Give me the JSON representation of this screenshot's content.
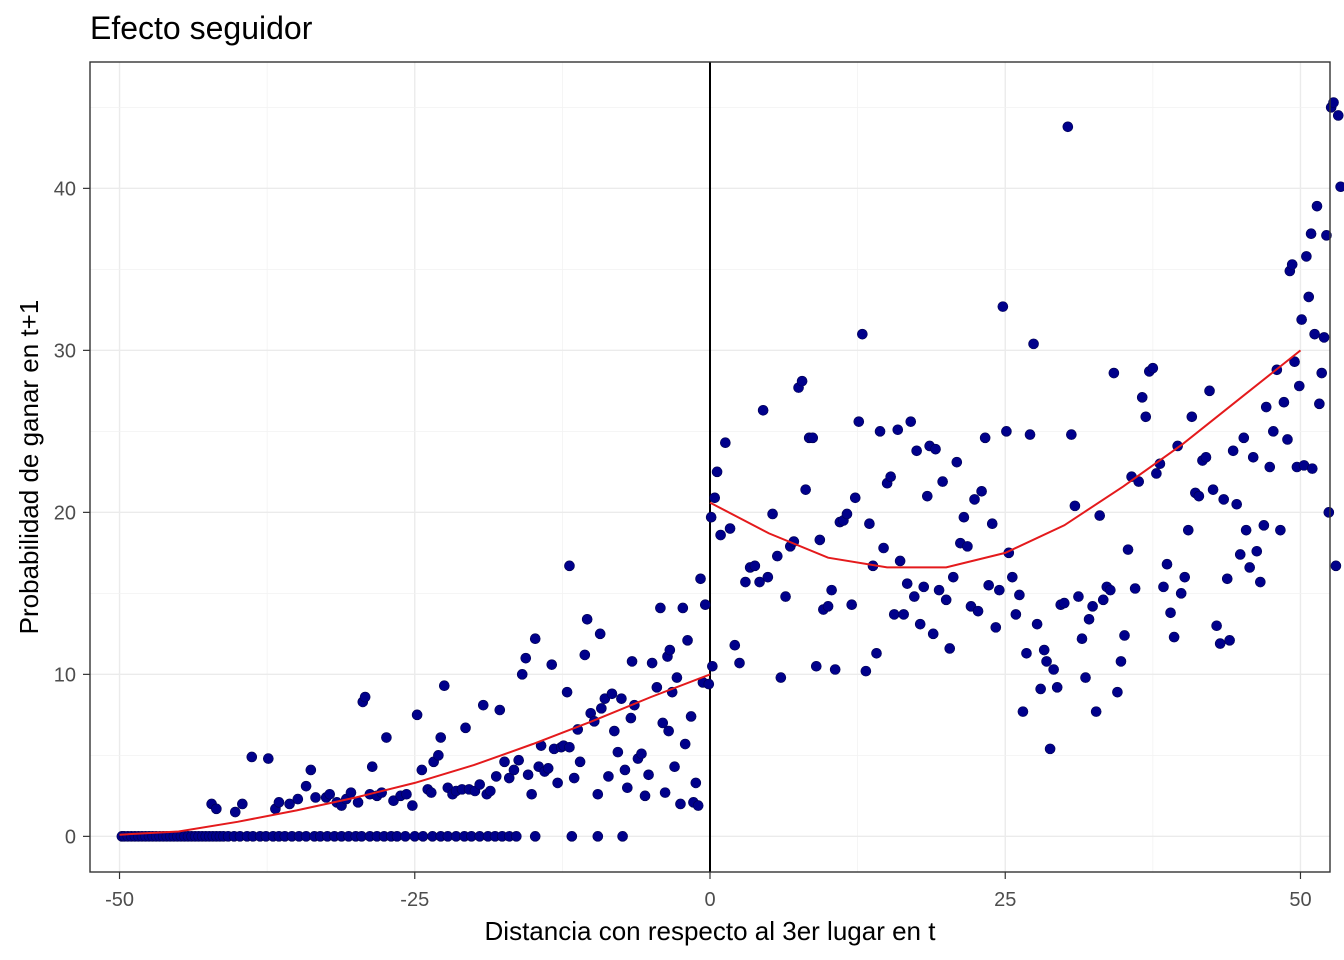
{
  "chart_data": {
    "type": "scatter",
    "title": "Efecto seguidor",
    "xlabel": "Distancia con respecto al 3er lugar en t",
    "ylabel": "Probabilidad de ganar en t+1",
    "xlim": [
      -52.5,
      52.5
    ],
    "ylim": [
      -2.2,
      47.8
    ],
    "x_ticks": [
      -50,
      -25,
      0,
      25,
      50
    ],
    "x_tick_labels": [
      "-50",
      "-25",
      "0",
      "25",
      "50"
    ],
    "y_ticks": [
      0,
      10,
      20,
      30,
      40
    ],
    "y_tick_labels": [
      "0",
      "10",
      "20",
      "30",
      "40"
    ],
    "grid": true,
    "legend": "none",
    "vline_x": 0,
    "point_color": "#00008B",
    "fit_color": "#E41A1C",
    "points": [
      [
        -49.8,
        0
      ],
      [
        -49.6,
        0
      ],
      [
        -49.3,
        0
      ],
      [
        -49.0,
        0
      ],
      [
        -48.7,
        0
      ],
      [
        -48.4,
        0
      ],
      [
        -48.1,
        0
      ],
      [
        -47.8,
        0
      ],
      [
        -47.5,
        0
      ],
      [
        -47.2,
        0
      ],
      [
        -46.9,
        0
      ],
      [
        -46.6,
        0
      ],
      [
        -46.3,
        0
      ],
      [
        -46.0,
        0
      ],
      [
        -45.7,
        0
      ],
      [
        -45.4,
        0
      ],
      [
        -45.1,
        0
      ],
      [
        -44.8,
        0
      ],
      [
        -44.5,
        0
      ],
      [
        -44.2,
        0
      ],
      [
        -43.9,
        0
      ],
      [
        -43.6,
        0
      ],
      [
        -43.3,
        0
      ],
      [
        -43.0,
        0
      ],
      [
        -42.7,
        0
      ],
      [
        -42.4,
        0
      ],
      [
        -42.1,
        0
      ],
      [
        -41.8,
        0
      ],
      [
        -41.5,
        0
      ],
      [
        -41.2,
        0
      ],
      [
        -40.8,
        0
      ],
      [
        -40.3,
        0
      ],
      [
        -39.8,
        0
      ],
      [
        -39.2,
        0
      ],
      [
        -38.7,
        0
      ],
      [
        -38.1,
        0
      ],
      [
        -37.6,
        0
      ],
      [
        -37.0,
        0
      ],
      [
        -36.5,
        0
      ],
      [
        -36.0,
        0
      ],
      [
        -35.4,
        0
      ],
      [
        -34.8,
        0
      ],
      [
        -34.2,
        0
      ],
      [
        -33.5,
        0
      ],
      [
        -33.0,
        0
      ],
      [
        -32.4,
        0
      ],
      [
        -31.8,
        0
      ],
      [
        -31.2,
        0
      ],
      [
        -30.6,
        0
      ],
      [
        -30.0,
        0
      ],
      [
        -29.5,
        0
      ],
      [
        -28.8,
        0
      ],
      [
        -28.2,
        0
      ],
      [
        -27.6,
        0
      ],
      [
        -27.0,
        0
      ],
      [
        -26.5,
        0
      ],
      [
        -25.8,
        0
      ],
      [
        -25.0,
        0
      ],
      [
        -24.3,
        0
      ],
      [
        -23.5,
        0
      ],
      [
        -22.8,
        0
      ],
      [
        -22.2,
        0
      ],
      [
        -21.5,
        0
      ],
      [
        -20.8,
        0
      ],
      [
        -20.2,
        0
      ],
      [
        -19.5,
        0
      ],
      [
        -18.8,
        0
      ],
      [
        -18.2,
        0
      ],
      [
        -17.6,
        0
      ],
      [
        -17.0,
        0
      ],
      [
        -16.4,
        0
      ],
      [
        -14.8,
        0
      ],
      [
        -11.7,
        0
      ],
      [
        -9.5,
        0
      ],
      [
        -7.4,
        0
      ],
      [
        -42.2,
        2.0
      ],
      [
        -41.8,
        1.7
      ],
      [
        -40.2,
        1.5
      ],
      [
        -39.6,
        2.0
      ],
      [
        -38.8,
        4.9
      ],
      [
        -37.4,
        4.8
      ],
      [
        -36.8,
        1.7
      ],
      [
        -36.5,
        2.1
      ],
      [
        -35.6,
        2.0
      ],
      [
        -34.9,
        2.3
      ],
      [
        -34.2,
        3.1
      ],
      [
        -33.8,
        4.1
      ],
      [
        -33.4,
        2.4
      ],
      [
        -32.5,
        2.4
      ],
      [
        -32.2,
        2.6
      ],
      [
        -31.6,
        2.1
      ],
      [
        -31.2,
        1.9
      ],
      [
        -30.8,
        2.3
      ],
      [
        -30.4,
        2.7
      ],
      [
        -29.8,
        2.1
      ],
      [
        -29.4,
        8.3
      ],
      [
        -29.2,
        8.6
      ],
      [
        -28.8,
        2.6
      ],
      [
        -28.6,
        4.3
      ],
      [
        -28.2,
        2.5
      ],
      [
        -27.8,
        2.7
      ],
      [
        -27.4,
        6.1
      ],
      [
        -26.8,
        2.2
      ],
      [
        -26.2,
        2.5
      ],
      [
        -25.7,
        2.6
      ],
      [
        -25.2,
        1.9
      ],
      [
        -24.8,
        7.5
      ],
      [
        -24.4,
        4.1
      ],
      [
        -23.9,
        2.9
      ],
      [
        -23.6,
        2.7
      ],
      [
        -23.4,
        4.6
      ],
      [
        -23.0,
        5.0
      ],
      [
        -22.8,
        6.1
      ],
      [
        -22.5,
        9.3
      ],
      [
        -22.2,
        3.0
      ],
      [
        -21.8,
        2.6
      ],
      [
        -21.5,
        2.8
      ],
      [
        -21.0,
        2.9
      ],
      [
        -20.7,
        6.7
      ],
      [
        -20.4,
        2.9
      ],
      [
        -19.9,
        2.8
      ],
      [
        -19.5,
        3.2
      ],
      [
        -19.2,
        8.1
      ],
      [
        -18.9,
        2.6
      ],
      [
        -18.6,
        2.8
      ],
      [
        -18.1,
        3.7
      ],
      [
        -17.8,
        7.8
      ],
      [
        -17.4,
        4.6
      ],
      [
        -17.0,
        3.6
      ],
      [
        -16.6,
        4.1
      ],
      [
        -16.2,
        4.7
      ],
      [
        -15.9,
        10.0
      ],
      [
        -15.6,
        11.0
      ],
      [
        -15.4,
        3.8
      ],
      [
        -15.1,
        2.6
      ],
      [
        -14.8,
        12.2
      ],
      [
        -14.5,
        4.3
      ],
      [
        -14.3,
        5.6
      ],
      [
        -14.0,
        4.0
      ],
      [
        -13.7,
        4.2
      ],
      [
        -13.4,
        10.6
      ],
      [
        -13.2,
        5.4
      ],
      [
        -12.9,
        3.3
      ],
      [
        -12.6,
        5.5
      ],
      [
        -12.4,
        5.6
      ],
      [
        -12.1,
        8.9
      ],
      [
        -11.9,
        5.5
      ],
      [
        -11.5,
        3.6
      ],
      [
        -11.2,
        6.6
      ],
      [
        -11.0,
        4.6
      ],
      [
        -10.6,
        11.2
      ],
      [
        -10.4,
        13.4
      ],
      [
        -10.1,
        7.6
      ],
      [
        -9.8,
        7.1
      ],
      [
        -9.5,
        2.6
      ],
      [
        -9.2,
        7.9
      ],
      [
        -8.9,
        8.5
      ],
      [
        -8.6,
        3.7
      ],
      [
        -8.3,
        8.8
      ],
      [
        -8.1,
        6.5
      ],
      [
        -7.8,
        5.2
      ],
      [
        -7.5,
        8.5
      ],
      [
        -7.2,
        4.1
      ],
      [
        -7.0,
        3.0
      ],
      [
        -6.7,
        7.3
      ],
      [
        -6.4,
        8.1
      ],
      [
        -6.1,
        4.8
      ],
      [
        -5.8,
        5.1
      ],
      [
        -5.5,
        2.5
      ],
      [
        -5.2,
        3.8
      ],
      [
        -4.9,
        10.7
      ],
      [
        -4.5,
        9.2
      ],
      [
        -4.2,
        14.1
      ],
      [
        -4.0,
        7.0
      ],
      [
        -3.8,
        2.7
      ],
      [
        -3.5,
        6.5
      ],
      [
        -3.2,
        8.9
      ],
      [
        -3.0,
        4.3
      ],
      [
        -2.8,
        9.8
      ],
      [
        -2.5,
        2.0
      ],
      [
        -2.3,
        14.1
      ],
      [
        -2.1,
        5.7
      ],
      [
        -1.9,
        12.1
      ],
      [
        -1.6,
        7.4
      ],
      [
        -1.4,
        2.1
      ],
      [
        -1.2,
        3.3
      ],
      [
        -1.0,
        1.9
      ],
      [
        -0.8,
        15.9
      ],
      [
        -0.6,
        9.5
      ],
      [
        -0.4,
        14.3
      ],
      [
        -0.1,
        9.4
      ],
      [
        -11.9,
        16.7
      ],
      [
        -9.3,
        12.5
      ],
      [
        -6.6,
        10.8
      ],
      [
        -3.6,
        11.1
      ],
      [
        -3.4,
        11.5
      ],
      [
        0.1,
        19.7
      ],
      [
        0.2,
        10.5
      ],
      [
        0.4,
        20.9
      ],
      [
        0.6,
        22.5
      ],
      [
        0.9,
        18.6
      ],
      [
        1.3,
        24.3
      ],
      [
        1.7,
        19.0
      ],
      [
        2.1,
        11.8
      ],
      [
        2.5,
        10.7
      ],
      [
        3.0,
        15.7
      ],
      [
        3.4,
        16.6
      ],
      [
        3.8,
        16.7
      ],
      [
        4.2,
        15.7
      ],
      [
        4.5,
        26.3
      ],
      [
        4.9,
        16.0
      ],
      [
        5.3,
        19.9
      ],
      [
        5.7,
        17.3
      ],
      [
        6.0,
        9.8
      ],
      [
        6.4,
        14.8
      ],
      [
        6.8,
        17.9
      ],
      [
        7.1,
        18.2
      ],
      [
        7.5,
        27.7
      ],
      [
        7.8,
        28.1
      ],
      [
        8.1,
        21.4
      ],
      [
        8.4,
        24.6
      ],
      [
        8.7,
        24.6
      ],
      [
        9.0,
        10.5
      ],
      [
        9.3,
        18.3
      ],
      [
        9.6,
        14.0
      ],
      [
        10.0,
        14.2
      ],
      [
        10.3,
        15.2
      ],
      [
        10.6,
        10.3
      ],
      [
        11.0,
        19.4
      ],
      [
        11.3,
        19.5
      ],
      [
        11.6,
        19.9
      ],
      [
        12.0,
        14.3
      ],
      [
        12.3,
        20.9
      ],
      [
        12.6,
        25.6
      ],
      [
        12.9,
        31.0
      ],
      [
        13.2,
        10.2
      ],
      [
        13.5,
        19.3
      ],
      [
        13.8,
        16.7
      ],
      [
        14.1,
        11.3
      ],
      [
        14.4,
        25.0
      ],
      [
        14.7,
        17.8
      ],
      [
        15.0,
        21.8
      ],
      [
        15.3,
        22.2
      ],
      [
        15.6,
        13.7
      ],
      [
        15.9,
        25.1
      ],
      [
        16.1,
        17.0
      ],
      [
        16.4,
        13.7
      ],
      [
        16.7,
        15.6
      ],
      [
        17.0,
        25.6
      ],
      [
        17.3,
        14.8
      ],
      [
        17.5,
        23.8
      ],
      [
        17.8,
        13.1
      ],
      [
        18.1,
        15.4
      ],
      [
        18.4,
        21.0
      ],
      [
        18.6,
        24.1
      ],
      [
        18.9,
        12.5
      ],
      [
        19.1,
        23.9
      ],
      [
        19.4,
        15.2
      ],
      [
        19.7,
        21.9
      ],
      [
        20.0,
        14.6
      ],
      [
        20.3,
        11.6
      ],
      [
        20.6,
        16.0
      ],
      [
        20.9,
        23.1
      ],
      [
        21.2,
        18.1
      ],
      [
        21.5,
        19.7
      ],
      [
        21.8,
        17.9
      ],
      [
        22.1,
        14.2
      ],
      [
        22.4,
        20.8
      ],
      [
        22.7,
        13.9
      ],
      [
        23.0,
        21.3
      ],
      [
        23.3,
        24.6
      ],
      [
        23.6,
        15.5
      ],
      [
        23.9,
        19.3
      ],
      [
        24.2,
        12.9
      ],
      [
        24.5,
        15.2
      ],
      [
        24.8,
        32.7
      ],
      [
        25.1,
        25.0
      ],
      [
        25.3,
        17.5
      ],
      [
        25.6,
        16.0
      ],
      [
        25.9,
        13.7
      ],
      [
        26.2,
        14.9
      ],
      [
        26.5,
        7.7
      ],
      [
        26.8,
        11.3
      ],
      [
        27.1,
        24.8
      ],
      [
        27.4,
        30.4
      ],
      [
        27.7,
        13.1
      ],
      [
        28.0,
        9.1
      ],
      [
        28.3,
        11.5
      ],
      [
        28.5,
        10.8
      ],
      [
        28.8,
        5.4
      ],
      [
        29.1,
        10.3
      ],
      [
        29.4,
        9.2
      ],
      [
        29.7,
        14.3
      ],
      [
        30.0,
        14.4
      ],
      [
        30.3,
        43.8
      ],
      [
        30.6,
        24.8
      ],
      [
        30.9,
        20.4
      ],
      [
        31.2,
        14.8
      ],
      [
        31.5,
        12.2
      ],
      [
        31.8,
        9.8
      ],
      [
        32.1,
        13.4
      ],
      [
        32.4,
        14.2
      ],
      [
        32.7,
        7.7
      ],
      [
        33.0,
        19.8
      ],
      [
        33.3,
        14.6
      ],
      [
        33.6,
        15.4
      ],
      [
        33.9,
        15.2
      ],
      [
        34.2,
        28.6
      ],
      [
        34.5,
        8.9
      ],
      [
        34.8,
        10.8
      ],
      [
        35.1,
        12.4
      ],
      [
        35.4,
        17.7
      ],
      [
        35.7,
        22.2
      ],
      [
        36.0,
        15.3
      ],
      [
        36.3,
        21.9
      ],
      [
        36.6,
        27.1
      ],
      [
        36.9,
        25.9
      ],
      [
        37.2,
        28.7
      ],
      [
        37.5,
        28.9
      ],
      [
        37.8,
        22.4
      ],
      [
        38.1,
        23.0
      ],
      [
        38.4,
        15.4
      ],
      [
        38.7,
        16.8
      ],
      [
        39.0,
        13.8
      ],
      [
        39.3,
        12.3
      ],
      [
        39.6,
        24.1
      ],
      [
        39.9,
        15.0
      ],
      [
        40.2,
        16.0
      ],
      [
        40.5,
        18.9
      ],
      [
        40.8,
        25.9
      ],
      [
        41.1,
        21.2
      ],
      [
        41.4,
        21.0
      ],
      [
        41.7,
        23.2
      ],
      [
        42.0,
        23.4
      ],
      [
        42.3,
        27.5
      ],
      [
        42.6,
        21.4
      ],
      [
        42.9,
        13.0
      ],
      [
        43.2,
        11.9
      ],
      [
        43.5,
        20.8
      ],
      [
        43.8,
        15.9
      ],
      [
        44.0,
        12.1
      ],
      [
        44.3,
        23.8
      ],
      [
        44.6,
        20.5
      ],
      [
        44.9,
        17.4
      ],
      [
        45.2,
        24.6
      ],
      [
        45.4,
        18.9
      ],
      [
        45.7,
        16.6
      ],
      [
        46.0,
        23.4
      ],
      [
        46.3,
        17.6
      ],
      [
        46.6,
        15.7
      ],
      [
        46.9,
        19.2
      ],
      [
        47.1,
        26.5
      ],
      [
        47.4,
        22.8
      ],
      [
        47.7,
        25.0
      ],
      [
        48.0,
        28.8
      ],
      [
        48.3,
        18.9
      ],
      [
        48.6,
        26.8
      ],
      [
        48.9,
        24.5
      ],
      [
        49.1,
        34.9
      ],
      [
        49.3,
        35.3
      ],
      [
        49.5,
        29.3
      ],
      [
        49.7,
        22.8
      ],
      [
        49.9,
        27.8
      ],
      [
        50.1,
        31.9
      ],
      [
        50.3,
        22.9
      ],
      [
        50.5,
        35.8
      ],
      [
        50.7,
        33.3
      ],
      [
        50.9,
        37.2
      ],
      [
        51.0,
        22.7
      ],
      [
        51.2,
        31.0
      ],
      [
        51.4,
        38.9
      ],
      [
        51.6,
        26.7
      ],
      [
        51.8,
        28.6
      ],
      [
        52.0,
        30.8
      ],
      [
        52.2,
        37.1
      ],
      [
        52.4,
        20.0
      ],
      [
        52.6,
        45.0
      ],
      [
        52.8,
        45.3
      ],
      [
        53.0,
        16.7
      ],
      [
        53.2,
        44.5
      ],
      [
        53.4,
        40.1
      ]
    ],
    "fit_left": [
      [
        -50,
        0.1
      ],
      [
        -45,
        0.3
      ],
      [
        -40,
        0.9
      ],
      [
        -35,
        1.6
      ],
      [
        -30,
        2.4
      ],
      [
        -25,
        3.3
      ],
      [
        -20,
        4.4
      ],
      [
        -15,
        5.7
      ],
      [
        -10,
        7.1
      ],
      [
        -5,
        8.6
      ],
      [
        0,
        10.0
      ]
    ],
    "fit_right": [
      [
        0,
        20.6
      ],
      [
        5,
        18.7
      ],
      [
        10,
        17.2
      ],
      [
        15,
        16.6
      ],
      [
        20,
        16.6
      ],
      [
        25,
        17.5
      ],
      [
        30,
        19.2
      ],
      [
        35,
        21.6
      ],
      [
        40,
        24.2
      ],
      [
        45,
        27.1
      ],
      [
        50,
        30.0
      ]
    ]
  }
}
